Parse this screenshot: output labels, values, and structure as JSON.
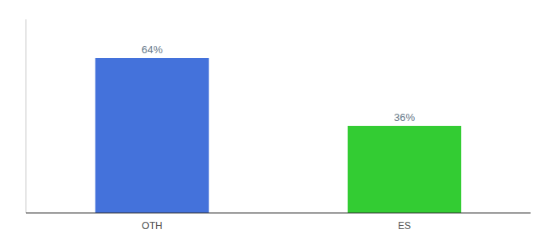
{
  "chart_data": {
    "type": "bar",
    "categories": [
      "OTH",
      "ES"
    ],
    "values": [
      64,
      36
    ],
    "value_labels": [
      "64%",
      "36%"
    ],
    "colors": [
      "#4472db",
      "#33cc33"
    ],
    "ylim": [
      0,
      80
    ],
    "data_labels": true,
    "tick_labels": "x",
    "grid": false
  }
}
